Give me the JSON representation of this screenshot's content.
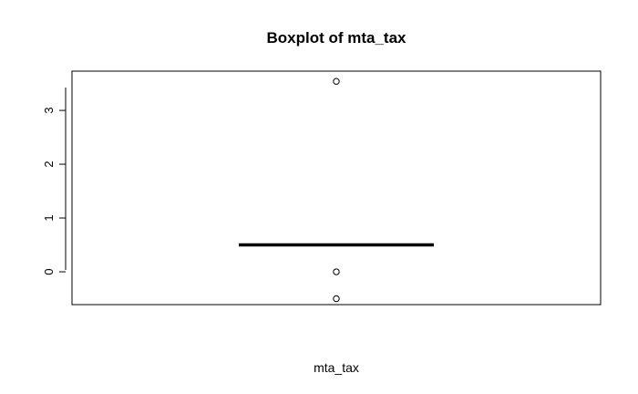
{
  "chart_data": {
    "type": "boxplot",
    "title": "Boxplot of mta_tax",
    "xlabel": "mta_tax",
    "ylabel": "",
    "series": [
      {
        "name": "mta_tax",
        "whisker_low": 0.5,
        "q1": 0.5,
        "median": 0.5,
        "q3": 0.5,
        "whisker_high": 0.5,
        "outliers": [
          3.54,
          0,
          -0.5
        ]
      }
    ],
    "y_ticks": [
      0,
      1,
      2,
      3
    ],
    "y_tick_labels": [
      "0",
      "1",
      "2",
      "3"
    ],
    "ylim": [
      -0.61,
      3.73
    ],
    "grid": false,
    "legend": "none"
  }
}
